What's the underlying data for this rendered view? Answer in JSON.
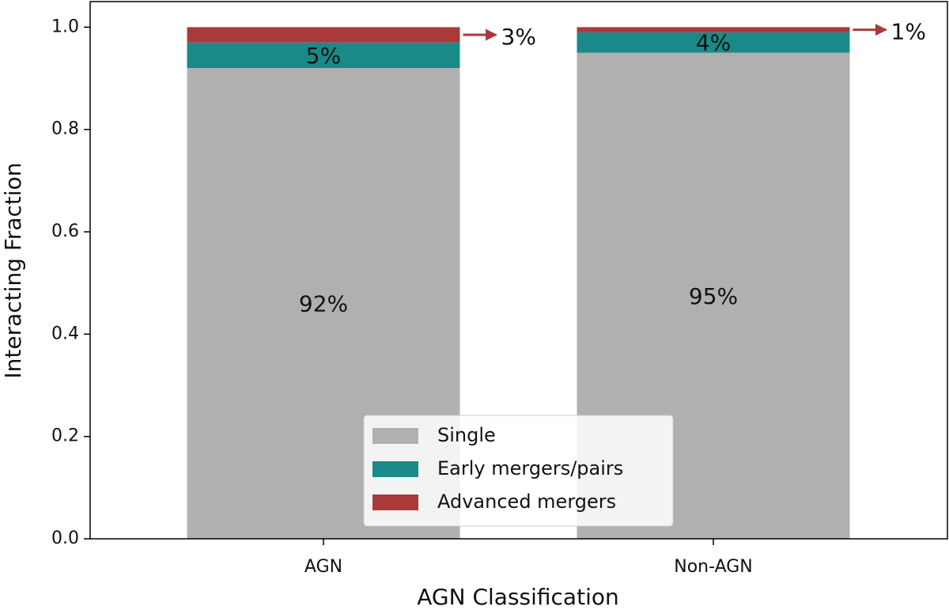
{
  "chart_data": {
    "type": "stacked_bar",
    "xlabel": "AGN Classification",
    "ylabel": "Interacting Fraction",
    "categories": [
      "AGN",
      "Non-AGN"
    ],
    "series": [
      {
        "name": "Single",
        "color": "#b0b0b0",
        "values": [
          0.92,
          0.95
        ],
        "value_labels": [
          "92%",
          "95%"
        ]
      },
      {
        "name": "Early mergers/pairs",
        "color": "#1a8a88",
        "values": [
          0.05,
          0.04
        ],
        "value_labels": [
          "5%",
          "4%"
        ]
      },
      {
        "name": "Advanced mergers",
        "color": "#a83a3a",
        "values": [
          0.03,
          0.01
        ],
        "value_labels": [
          "3%",
          "1%"
        ]
      }
    ],
    "ylim": [
      0,
      1.05
    ],
    "yticks": [
      {
        "value": 0,
        "label": "0.0"
      },
      {
        "value": 0.2,
        "label": "0.2"
      },
      {
        "value": 0.4,
        "label": "0.4"
      },
      {
        "value": 0.6,
        "label": "0.6"
      },
      {
        "value": 0.8,
        "label": "0.8"
      },
      {
        "value": 1.0,
        "label": "1.0"
      }
    ]
  }
}
